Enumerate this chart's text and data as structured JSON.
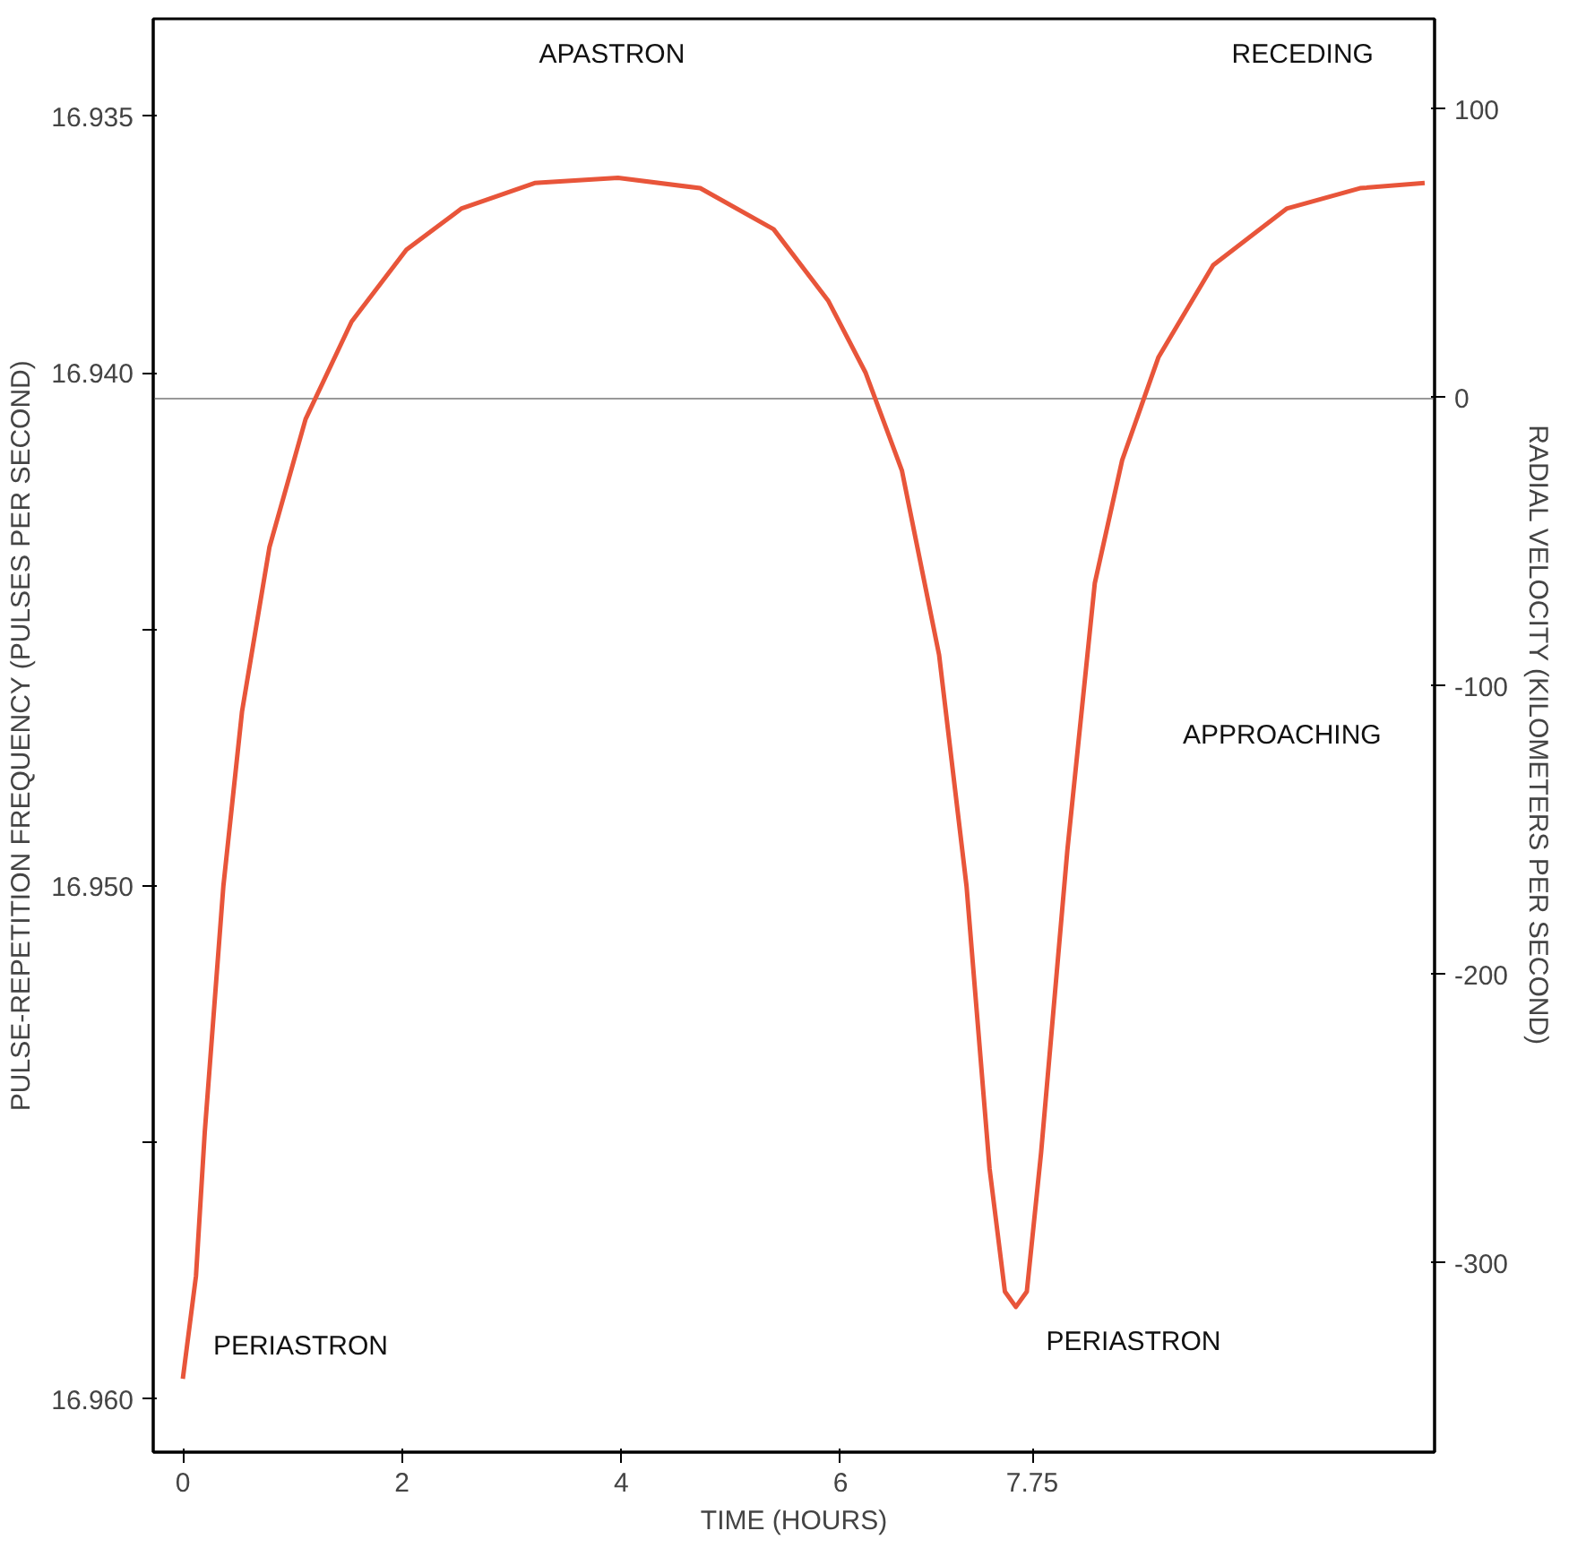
{
  "chart_data": {
    "type": "line",
    "xlabel": "TIME (HOURS)",
    "ylabel": "PULSE-REPETITION FREQUENCY (PULSES PER SECOND)",
    "y2label": "RADIAL VELOCITY (KILOMETERS PER SECOND)",
    "x": [
      0,
      0.12,
      0.2,
      0.37,
      0.54,
      0.79,
      1.12,
      1.54,
      2.04,
      2.54,
      3.21,
      3.97,
      4.72,
      5.39,
      5.89,
      6.23,
      6.56,
      6.9,
      7.15,
      7.36,
      7.5,
      7.6,
      7.7,
      7.83,
      8.07,
      8.32,
      8.57,
      8.9,
      9.4,
      10.07,
      10.74,
      11.33
    ],
    "series": [
      {
        "color": "#e8553a",
        "values": [
          16.9596,
          16.9576,
          16.9548,
          16.95,
          16.9466,
          16.9434,
          16.9409,
          16.939,
          16.9376,
          16.9368,
          16.9363,
          16.9362,
          16.9364,
          16.9372,
          16.9386,
          16.94,
          16.9419,
          16.9455,
          16.95,
          16.9555,
          16.9579,
          16.9582,
          16.9579,
          16.9552,
          16.9493,
          16.9441,
          16.9417,
          16.9397,
          16.9379,
          16.9368,
          16.9364,
          16.9363
        ]
      }
    ],
    "xlim": [
      -0.27,
      11.42
    ],
    "xticks": [
      0,
      2,
      4,
      6,
      7.75
    ],
    "ylim": [
      16.96103,
      16.9331
    ],
    "yticks": [
      16.935,
      {
        "value": 16.94,
        "label": "16.940"
      },
      {
        "value": 16.945,
        "label": null
      },
      {
        "value": 16.95,
        "label": "16.950"
      },
      {
        "value": 16.955,
        "label": null
      },
      {
        "value": 16.96,
        "label": "16.960"
      }
    ],
    "y2lim": [
      -365.6,
      131.3
    ],
    "y2ticks": [
      100,
      0,
      -100,
      -200,
      -300
    ],
    "ref_lines": [
      {
        "axis": "y",
        "value": 16.9405,
        "color": "#999999"
      }
    ],
    "annotations": [
      "APASTRON",
      "RECEDING",
      "APPROACHING",
      "PERIASTRON",
      "PERIASTRON"
    ],
    "grid": false
  }
}
